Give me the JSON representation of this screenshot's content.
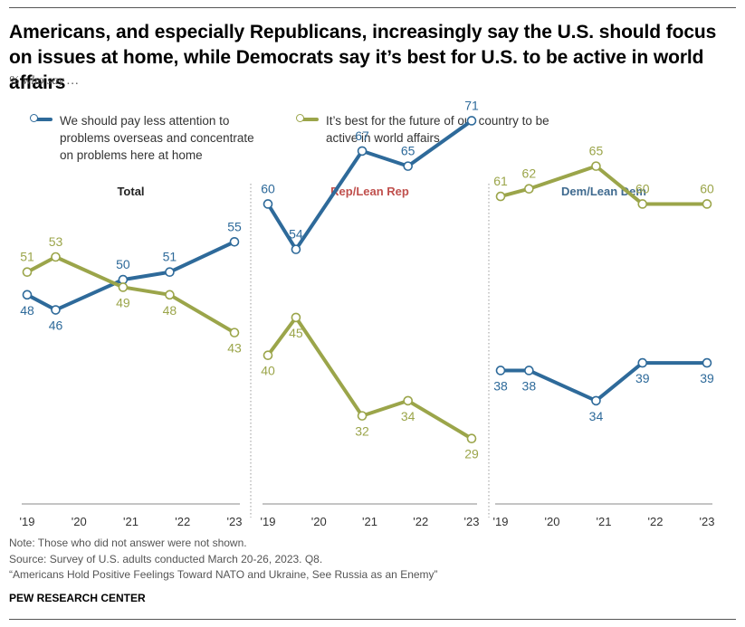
{
  "title": "Americans, and especially Republicans, increasingly say the U.S. should focus on issues at home, while Democrats say it’s best for U.S. to be active in world affairs",
  "subtitle": "% who say …",
  "legend": [
    {
      "label": "We should pay less attention to problems overseas and concentrate on problems here at home",
      "color": "#2e6a9a"
    },
    {
      "label": "It’s best for the future of our country to be active in world affairs",
      "color": "#9ba54a"
    }
  ],
  "colors": {
    "home": "#2e6a9a",
    "world": "#9ba54a",
    "rep_title": "#c0504d",
    "dem_title": "#3f6a8f",
    "total_title": "#222222"
  },
  "chart_data": {
    "type": "line",
    "x_tick_labels": [
      "'19",
      "'20",
      "'21",
      "'22",
      "'23"
    ],
    "x_ticks": [
      2019,
      2020,
      2021,
      2022,
      2023
    ],
    "xlim": [
      2019,
      2023
    ],
    "ylim": [
      20,
      75
    ],
    "grid": false,
    "panels": [
      {
        "title": "Total",
        "title_color_key": "total_title",
        "series": [
          {
            "name": "We should pay less attention to problems overseas and concentrate on problems here at home",
            "color_key": "home",
            "points": [
              {
                "x": 2019.0,
                "y": 48
              },
              {
                "x": 2019.55,
                "y": 46
              },
              {
                "x": 2020.85,
                "y": 50
              },
              {
                "x": 2021.75,
                "y": 51
              },
              {
                "x": 2023.0,
                "y": 55
              }
            ]
          },
          {
            "name": "It’s best for the future of our country to be active in world affairs",
            "color_key": "world",
            "points": [
              {
                "x": 2019.0,
                "y": 51
              },
              {
                "x": 2019.55,
                "y": 53
              },
              {
                "x": 2020.85,
                "y": 49
              },
              {
                "x": 2021.75,
                "y": 48
              },
              {
                "x": 2023.0,
                "y": 43
              }
            ]
          }
        ]
      },
      {
        "title": "Rep/Lean Rep",
        "title_color_key": "rep_title",
        "series": [
          {
            "name": "We should pay less attention to problems overseas and concentrate on problems here at home",
            "color_key": "home",
            "points": [
              {
                "x": 2019.0,
                "y": 60
              },
              {
                "x": 2019.55,
                "y": 54
              },
              {
                "x": 2020.85,
                "y": 67
              },
              {
                "x": 2021.75,
                "y": 65
              },
              {
                "x": 2023.0,
                "y": 71
              }
            ]
          },
          {
            "name": "It’s best for the future of our country to be active in world affairs",
            "color_key": "world",
            "points": [
              {
                "x": 2019.0,
                "y": 40
              },
              {
                "x": 2019.55,
                "y": 45
              },
              {
                "x": 2020.85,
                "y": 32
              },
              {
                "x": 2021.75,
                "y": 34
              },
              {
                "x": 2023.0,
                "y": 29
              }
            ]
          }
        ]
      },
      {
        "title": "Dem/Lean Dem",
        "title_color_key": "dem_title",
        "series": [
          {
            "name": "We should pay less attention to problems overseas and concentrate on problems here at home",
            "color_key": "home",
            "points": [
              {
                "x": 2019.0,
                "y": 38
              },
              {
                "x": 2019.55,
                "y": 38
              },
              {
                "x": 2020.85,
                "y": 34
              },
              {
                "x": 2021.75,
                "y": 39
              },
              {
                "x": 2023.0,
                "y": 39
              }
            ]
          },
          {
            "name": "It’s best for the future of our country to be active in world affairs",
            "color_key": "world",
            "points": [
              {
                "x": 2019.0,
                "y": 61
              },
              {
                "x": 2019.55,
                "y": 62
              },
              {
                "x": 2020.85,
                "y": 65
              },
              {
                "x": 2021.75,
                "y": 60
              },
              {
                "x": 2023.0,
                "y": 60
              }
            ]
          }
        ]
      }
    ]
  },
  "notes": {
    "note": "Note: Those who did not answer were not shown.",
    "source": "Source: Survey of U.S. adults conducted March 20-26, 2023. Q8.",
    "report": "“Americans Hold Positive Feelings Toward NATO and Ukraine, See Russia as an Enemy”",
    "org": "PEW RESEARCH CENTER"
  }
}
